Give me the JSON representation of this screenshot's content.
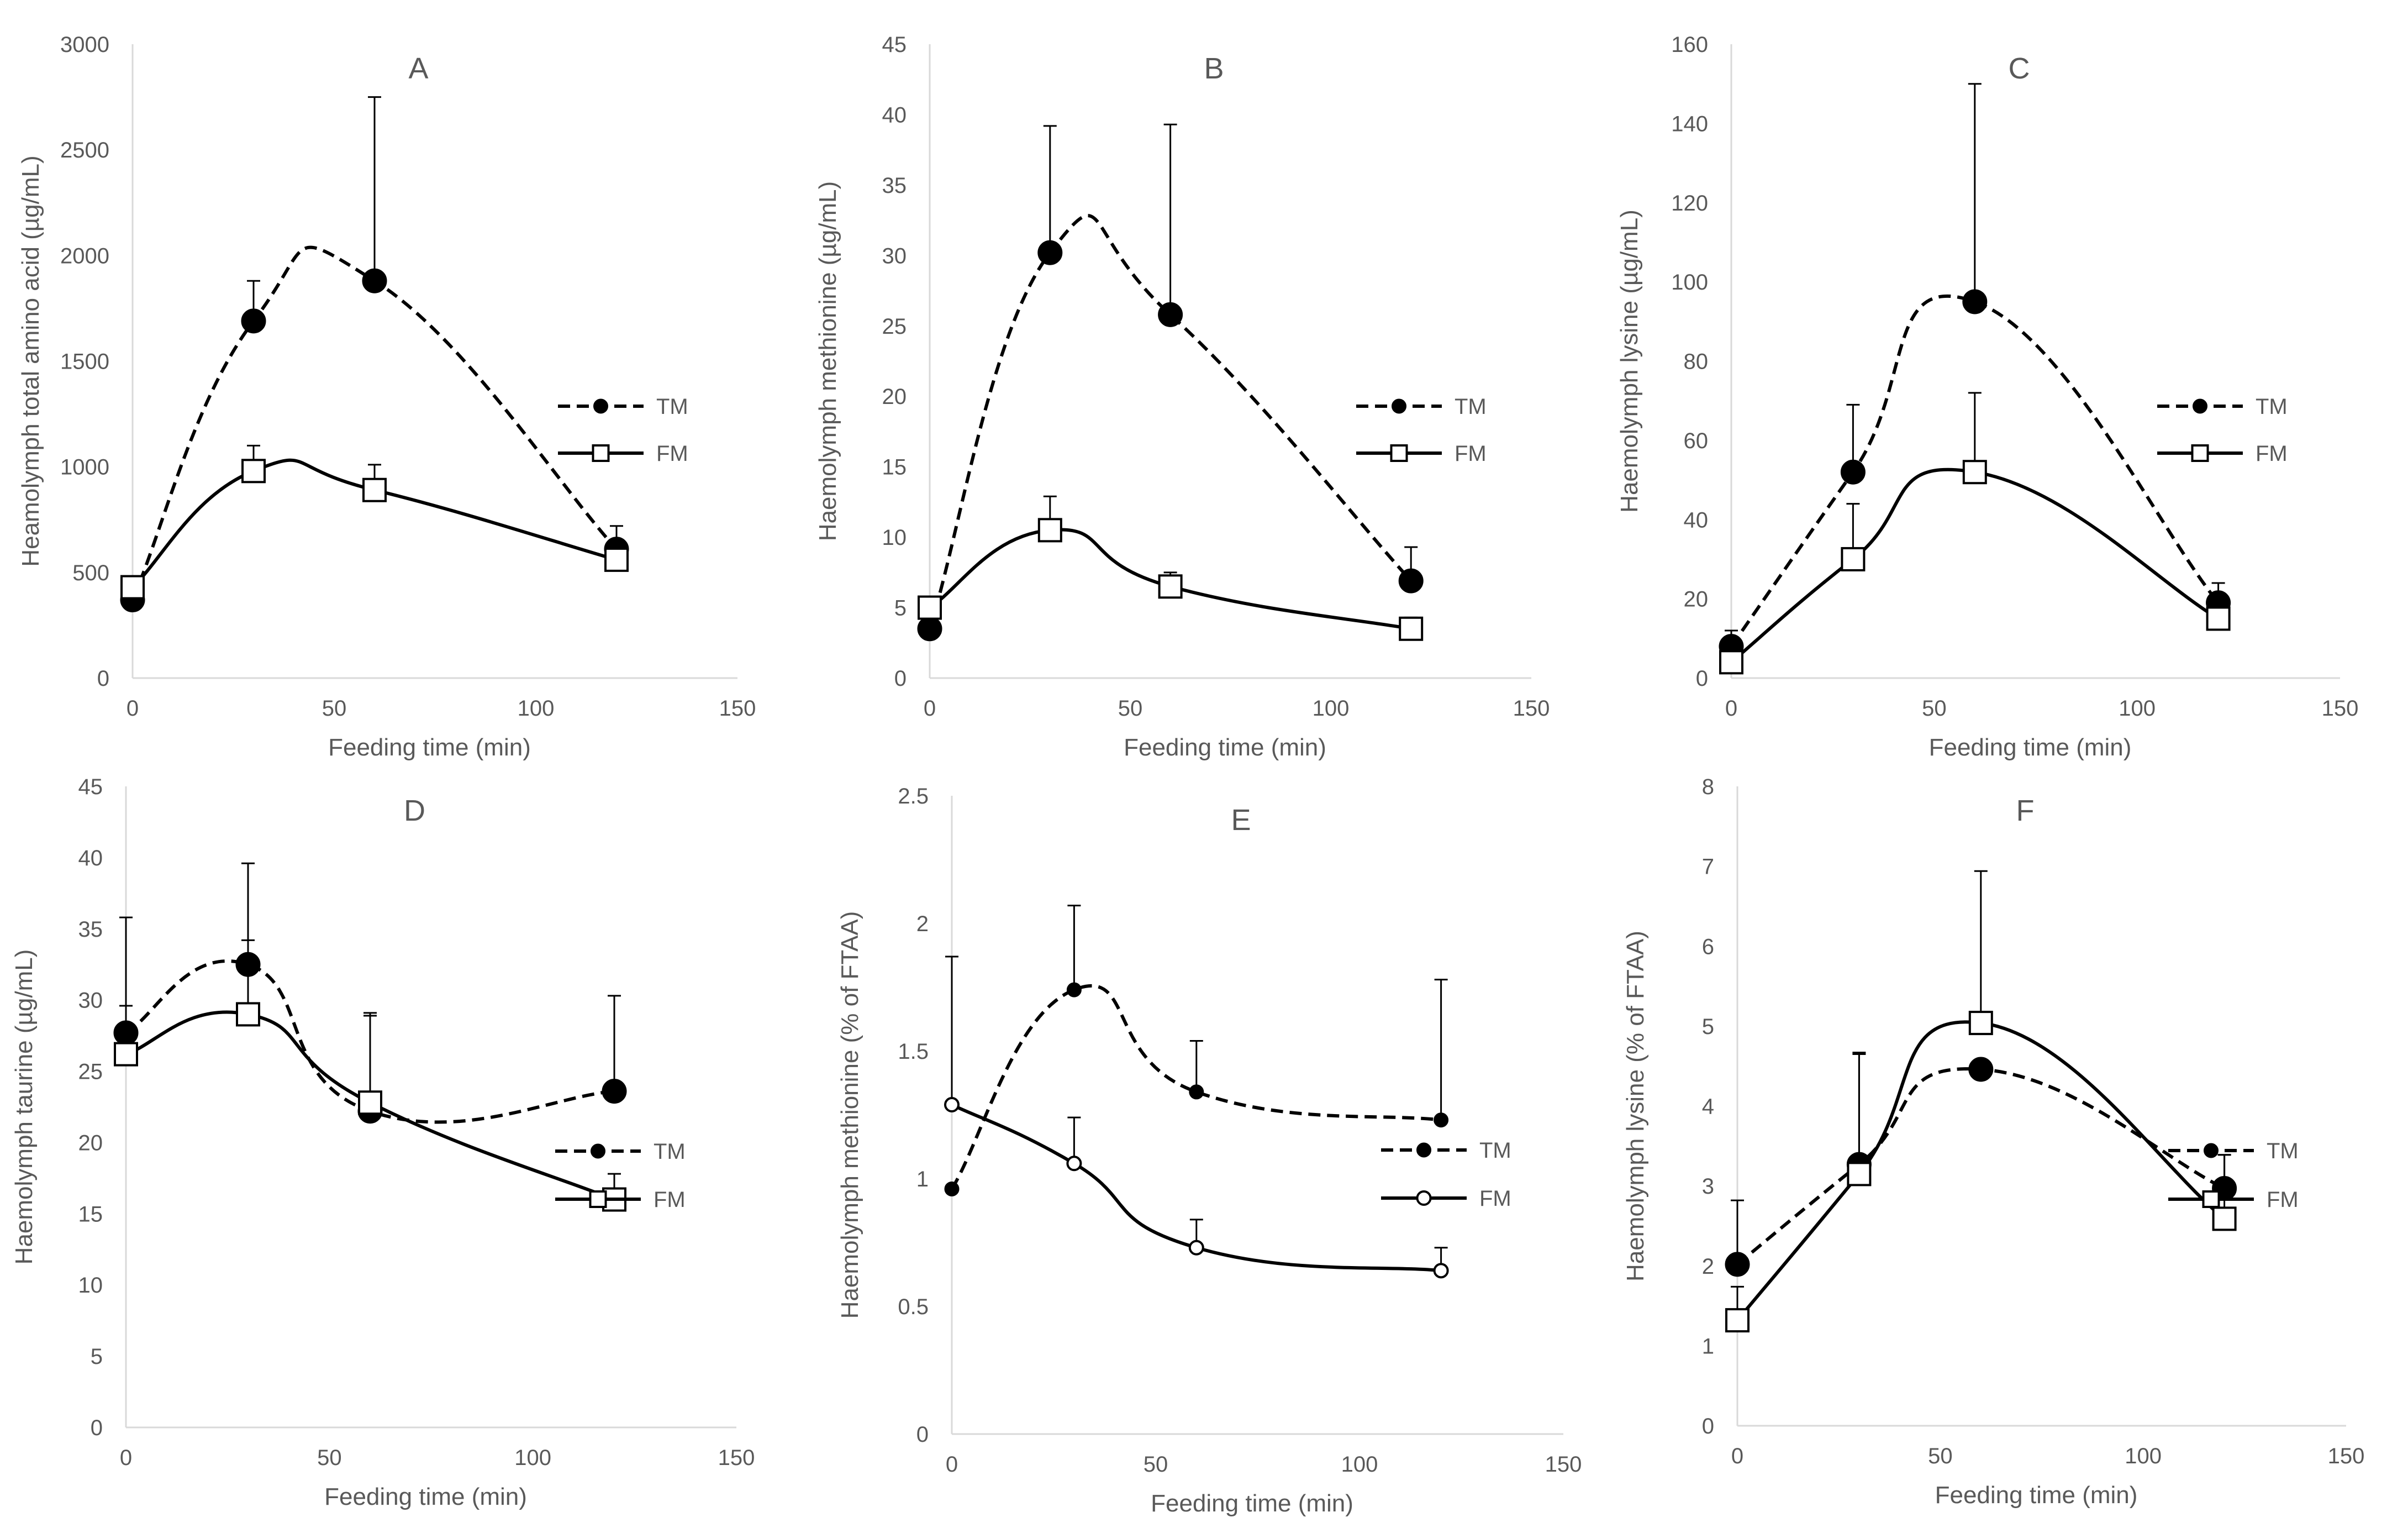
{
  "figure": {
    "legend_labels": [
      "TM",
      "FM"
    ]
  },
  "chart_data": [
    {
      "type": "line",
      "title": "A",
      "xlabel": "Feeding time (min)",
      "ylabel": "Heamolymph total amino acid (µg/mL)",
      "xlim": [
        0,
        150
      ],
      "xticks": [
        0,
        50,
        100,
        150
      ],
      "ylim": [
        0,
        3000
      ],
      "yticks": [
        0,
        500,
        1000,
        1500,
        2000,
        2500,
        3000
      ],
      "x": [
        0,
        30,
        60,
        120
      ],
      "series": [
        {
          "name": "TM",
          "marker": "filled-circle",
          "style": "dashed",
          "values": [
            370,
            1690,
            1880,
            610
          ],
          "error": [
            0,
            190,
            870,
            110
          ]
        },
        {
          "name": "FM",
          "marker": "open-square",
          "style": "solid",
          "values": [
            430,
            980,
            890,
            560
          ],
          "error": [
            0,
            120,
            120,
            0
          ]
        }
      ]
    },
    {
      "type": "line",
      "title": "B",
      "xlabel": "Feeding time (min)",
      "ylabel": "Haemolymph methionine (µg/mL)",
      "xlim": [
        0,
        150
      ],
      "xticks": [
        0,
        50,
        100,
        150
      ],
      "ylim": [
        0,
        45
      ],
      "yticks": [
        0,
        5,
        10,
        15,
        20,
        25,
        30,
        35,
        40,
        45
      ],
      "x": [
        0,
        30,
        60,
        120
      ],
      "series": [
        {
          "name": "TM",
          "marker": "filled-circle",
          "style": "dashed",
          "values": [
            3.5,
            30.2,
            25.8,
            6.9
          ],
          "error": [
            0,
            9.0,
            13.5,
            2.4
          ]
        },
        {
          "name": "FM",
          "marker": "open-square",
          "style": "solid",
          "values": [
            5.0,
            10.5,
            6.5,
            3.5
          ],
          "error": [
            0,
            2.4,
            1.0,
            0.8
          ]
        }
      ]
    },
    {
      "type": "line",
      "title": "C",
      "xlabel": "Feeding time (min)",
      "ylabel": "Haemolymph lysine (µg/mL)",
      "xlim": [
        0,
        150
      ],
      "xticks": [
        0,
        50,
        100,
        150
      ],
      "ylim": [
        0,
        160
      ],
      "yticks": [
        0,
        20,
        40,
        60,
        80,
        100,
        120,
        140,
        160
      ],
      "x": [
        0,
        30,
        60,
        120
      ],
      "series": [
        {
          "name": "TM",
          "marker": "filled-circle",
          "style": "dashed",
          "values": [
            8,
            52,
            95,
            19
          ],
          "error": [
            4,
            17,
            55,
            5
          ]
        },
        {
          "name": "FM",
          "marker": "open-square",
          "style": "solid",
          "values": [
            4,
            30,
            52,
            15
          ],
          "error": [
            0,
            14,
            20,
            0
          ]
        }
      ]
    },
    {
      "type": "line",
      "title": "D",
      "xlabel": "Feeding time (min)",
      "ylabel": "Haemolymph taurine (µg/mL)",
      "xlim": [
        0,
        150
      ],
      "xticks": [
        0,
        50,
        100,
        150
      ],
      "ylim": [
        0,
        45
      ],
      "yticks": [
        0,
        5,
        10,
        15,
        20,
        25,
        30,
        35,
        40,
        45
      ],
      "x": [
        0,
        30,
        60,
        120
      ],
      "series": [
        {
          "name": "TM",
          "marker": "filled-circle",
          "style": "dashed",
          "values": [
            27.7,
            32.5,
            22.2,
            23.6
          ],
          "error": [
            1.9,
            7.1,
            6.7,
            6.7
          ]
        },
        {
          "name": "FM",
          "marker": "open-square",
          "style": "solid",
          "values": [
            26.2,
            29.0,
            22.8,
            16.0
          ],
          "error": [
            9.6,
            5.2,
            6.3,
            1.8
          ]
        }
      ]
    },
    {
      "type": "line",
      "title": "E",
      "xlabel": "Feeding time (min)",
      "ylabel": "Haemolymph methionine (% of FTAA)",
      "xlim": [
        0,
        150
      ],
      "xticks": [
        0,
        50,
        100,
        150
      ],
      "ylim": [
        0,
        2.5
      ],
      "yticks": [
        0,
        0.5,
        1,
        1.5,
        2,
        2.5
      ],
      "x": [
        0,
        30,
        60,
        120
      ],
      "series": [
        {
          "name": "TM",
          "marker": "small-filled-circle",
          "style": "dashed",
          "values": [
            0.96,
            1.74,
            1.34,
            1.23
          ],
          "error": [
            0,
            0.33,
            0.2,
            0.55
          ]
        },
        {
          "name": "FM",
          "marker": "small-open-circle",
          "style": "solid",
          "values": [
            1.29,
            1.06,
            0.73,
            0.64
          ],
          "error": [
            0.58,
            0.18,
            0.11,
            0.09
          ]
        }
      ]
    },
    {
      "type": "line",
      "title": "F",
      "xlabel": "Feeding time (min)",
      "ylabel": "Haemolymph lysine (% of FTAA)",
      "xlim": [
        0,
        150
      ],
      "xticks": [
        0,
        50,
        100,
        150
      ],
      "ylim": [
        0,
        8
      ],
      "yticks": [
        0,
        1,
        2,
        3,
        4,
        5,
        6,
        7,
        8
      ],
      "x": [
        0,
        30,
        60,
        120
      ],
      "series": [
        {
          "name": "TM",
          "marker": "filled-circle",
          "style": "dashed",
          "values": [
            2.02,
            3.27,
            4.46,
            2.97
          ],
          "error": [
            0.8,
            1.4,
            0,
            0.42
          ]
        },
        {
          "name": "FM",
          "marker": "open-square",
          "style": "solid",
          "values": [
            1.32,
            3.15,
            5.04,
            2.59
          ],
          "error": [
            0.42,
            1.5,
            1.9,
            0.8
          ]
        }
      ]
    }
  ]
}
